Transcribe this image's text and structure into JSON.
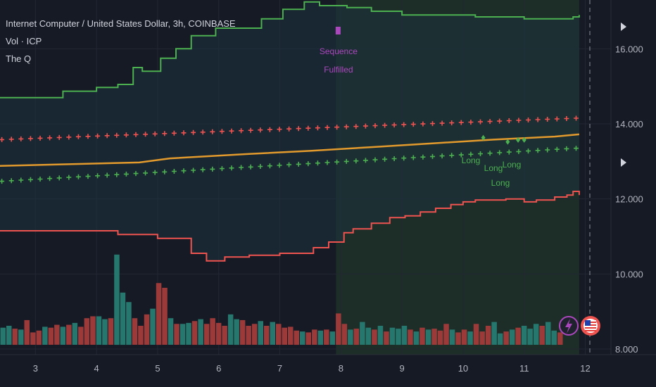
{
  "legend": {
    "title": "Internet Computer / United States Dollar, 3h, COINBASE",
    "vol": "Vol · ICP",
    "indicator": "The Q"
  },
  "chart_data": {
    "type": "line",
    "title": "Internet Computer / United States Dollar, 3h, COINBASE",
    "x_ticks": [
      "3",
      "4",
      "5",
      "6",
      "7",
      "8",
      "9",
      "10",
      "11",
      "12"
    ],
    "y_ticks": [
      "16.000",
      "14.000",
      "12.000",
      "10.000",
      "8.000"
    ],
    "ylim": [
      7.85,
      17.3
    ],
    "xlim": [
      2.42,
      12.42
    ],
    "grid": true,
    "colors": {
      "upper_band": "#4caf50",
      "lower_band": "#ef5350",
      "basis": "#e39a2d",
      "plus_upper": "#ef5350",
      "plus_lower": "#4caf50",
      "vol_up": "#26786f",
      "vol_down": "#9c3a3a",
      "signal_long": "#4caf50",
      "signal_seq": "#ab47bc",
      "highlight": "#1d3326"
    },
    "highlight_range": [
      7.92,
      11.9
    ],
    "series": [
      {
        "name": "upper",
        "style": "step",
        "x": [
          2.42,
          3.0,
          3.45,
          4.0,
          4.35,
          4.6,
          4.75,
          5.05,
          5.3,
          5.55,
          5.95,
          6.7,
          7.05,
          7.4,
          7.65,
          8.1,
          8.5,
          9.0,
          10.2,
          11.0,
          11.8,
          11.9
        ],
        "values": [
          14.7,
          14.7,
          14.87,
          14.97,
          15.05,
          15.5,
          15.4,
          15.75,
          16.0,
          16.35,
          16.55,
          16.8,
          17.05,
          17.25,
          17.15,
          17.1,
          17.0,
          16.9,
          16.85,
          16.8,
          16.85,
          16.9
        ]
      },
      {
        "name": "lower",
        "style": "step",
        "x": [
          2.42,
          4.35,
          5.0,
          5.55,
          5.8,
          6.1,
          6.5,
          7.0,
          7.55,
          7.8,
          8.05,
          8.2,
          8.5,
          8.8,
          9.05,
          9.3,
          9.55,
          9.8,
          10.0,
          10.2,
          10.7,
          11.0,
          11.2,
          11.5,
          11.7,
          11.8,
          11.9
        ],
        "values": [
          11.15,
          11.05,
          10.95,
          10.55,
          10.35,
          10.45,
          10.5,
          10.55,
          10.7,
          10.85,
          11.1,
          11.2,
          11.35,
          11.5,
          11.55,
          11.65,
          11.75,
          11.85,
          11.92,
          11.97,
          12.0,
          11.92,
          11.97,
          12.05,
          12.1,
          12.2,
          12.1
        ]
      },
      {
        "name": "basis",
        "style": "line",
        "x": [
          2.42,
          4.7,
          5.2,
          6.5,
          7.5,
          8.5,
          9.5,
          10.5,
          11.5,
          11.9
        ],
        "values": [
          12.88,
          12.97,
          13.08,
          13.2,
          13.28,
          13.38,
          13.48,
          13.58,
          13.66,
          13.72
        ]
      }
    ],
    "plus_upper": {
      "x_start": 2.45,
      "x_end": 11.85,
      "y_start": 13.58,
      "y_end": 14.15
    },
    "plus_lower": {
      "x_start": 2.45,
      "x_end": 11.85,
      "y_start": 12.47,
      "y_end": 13.35
    },
    "signals": [
      {
        "label": "Long",
        "x": 10.33,
        "y": 13.63
      },
      {
        "label": "Long",
        "x": 10.73,
        "y": 13.52
      },
      {
        "label": "Long",
        "x": 10.9,
        "y": 13.57
      },
      {
        "label": "Long",
        "x": 11.0,
        "y": 13.57
      }
    ],
    "sequence_marker": {
      "line1": "Sequence",
      "line2": "Fulfilled",
      "x": 7.96,
      "y": 16.6
    },
    "volume": {
      "up": [
        true,
        true,
        false,
        true,
        false,
        false,
        false,
        true,
        false,
        false,
        true,
        false,
        true,
        false,
        false,
        false,
        true,
        true,
        false,
        true,
        true,
        true,
        false,
        false,
        false,
        true,
        false,
        false,
        true,
        false,
        true,
        true,
        false,
        true,
        false,
        false,
        false,
        false,
        true,
        true,
        false,
        false,
        false,
        true,
        false,
        true,
        false,
        false,
        false,
        false,
        true,
        false,
        false,
        true,
        false,
        true,
        false,
        false,
        true,
        false,
        true,
        true,
        false,
        true,
        false,
        true,
        true,
        true,
        false,
        true,
        false,
        true,
        false,
        false,
        false,
        true,
        false,
        false,
        true,
        false,
        false,
        false,
        true,
        true,
        false,
        true,
        false,
        true,
        true,
        true,
        false,
        true,
        true,
        false
      ],
      "values": [
        0.18,
        0.2,
        0.17,
        0.16,
        0.26,
        0.13,
        0.15,
        0.19,
        0.18,
        0.21,
        0.19,
        0.21,
        0.23,
        0.19,
        0.28,
        0.3,
        0.3,
        0.27,
        0.28,
        0.95,
        0.55,
        0.45,
        0.28,
        0.2,
        0.32,
        0.38,
        0.65,
        0.6,
        0.28,
        0.22,
        0.22,
        0.23,
        0.25,
        0.27,
        0.22,
        0.28,
        0.23,
        0.2,
        0.32,
        0.27,
        0.26,
        0.2,
        0.22,
        0.25,
        0.2,
        0.24,
        0.22,
        0.18,
        0.19,
        0.15,
        0.14,
        0.13,
        0.16,
        0.15,
        0.16,
        0.14,
        0.33,
        0.22,
        0.16,
        0.17,
        0.24,
        0.18,
        0.16,
        0.2,
        0.14,
        0.18,
        0.17,
        0.2,
        0.16,
        0.14,
        0.18,
        0.16,
        0.17,
        0.15,
        0.22,
        0.16,
        0.13,
        0.16,
        0.14,
        0.22,
        0.14,
        0.2,
        0.24,
        0.12,
        0.14,
        0.16,
        0.18,
        0.2,
        0.17,
        0.22,
        0.2,
        0.24,
        0.15,
        0.13
      ]
    }
  }
}
